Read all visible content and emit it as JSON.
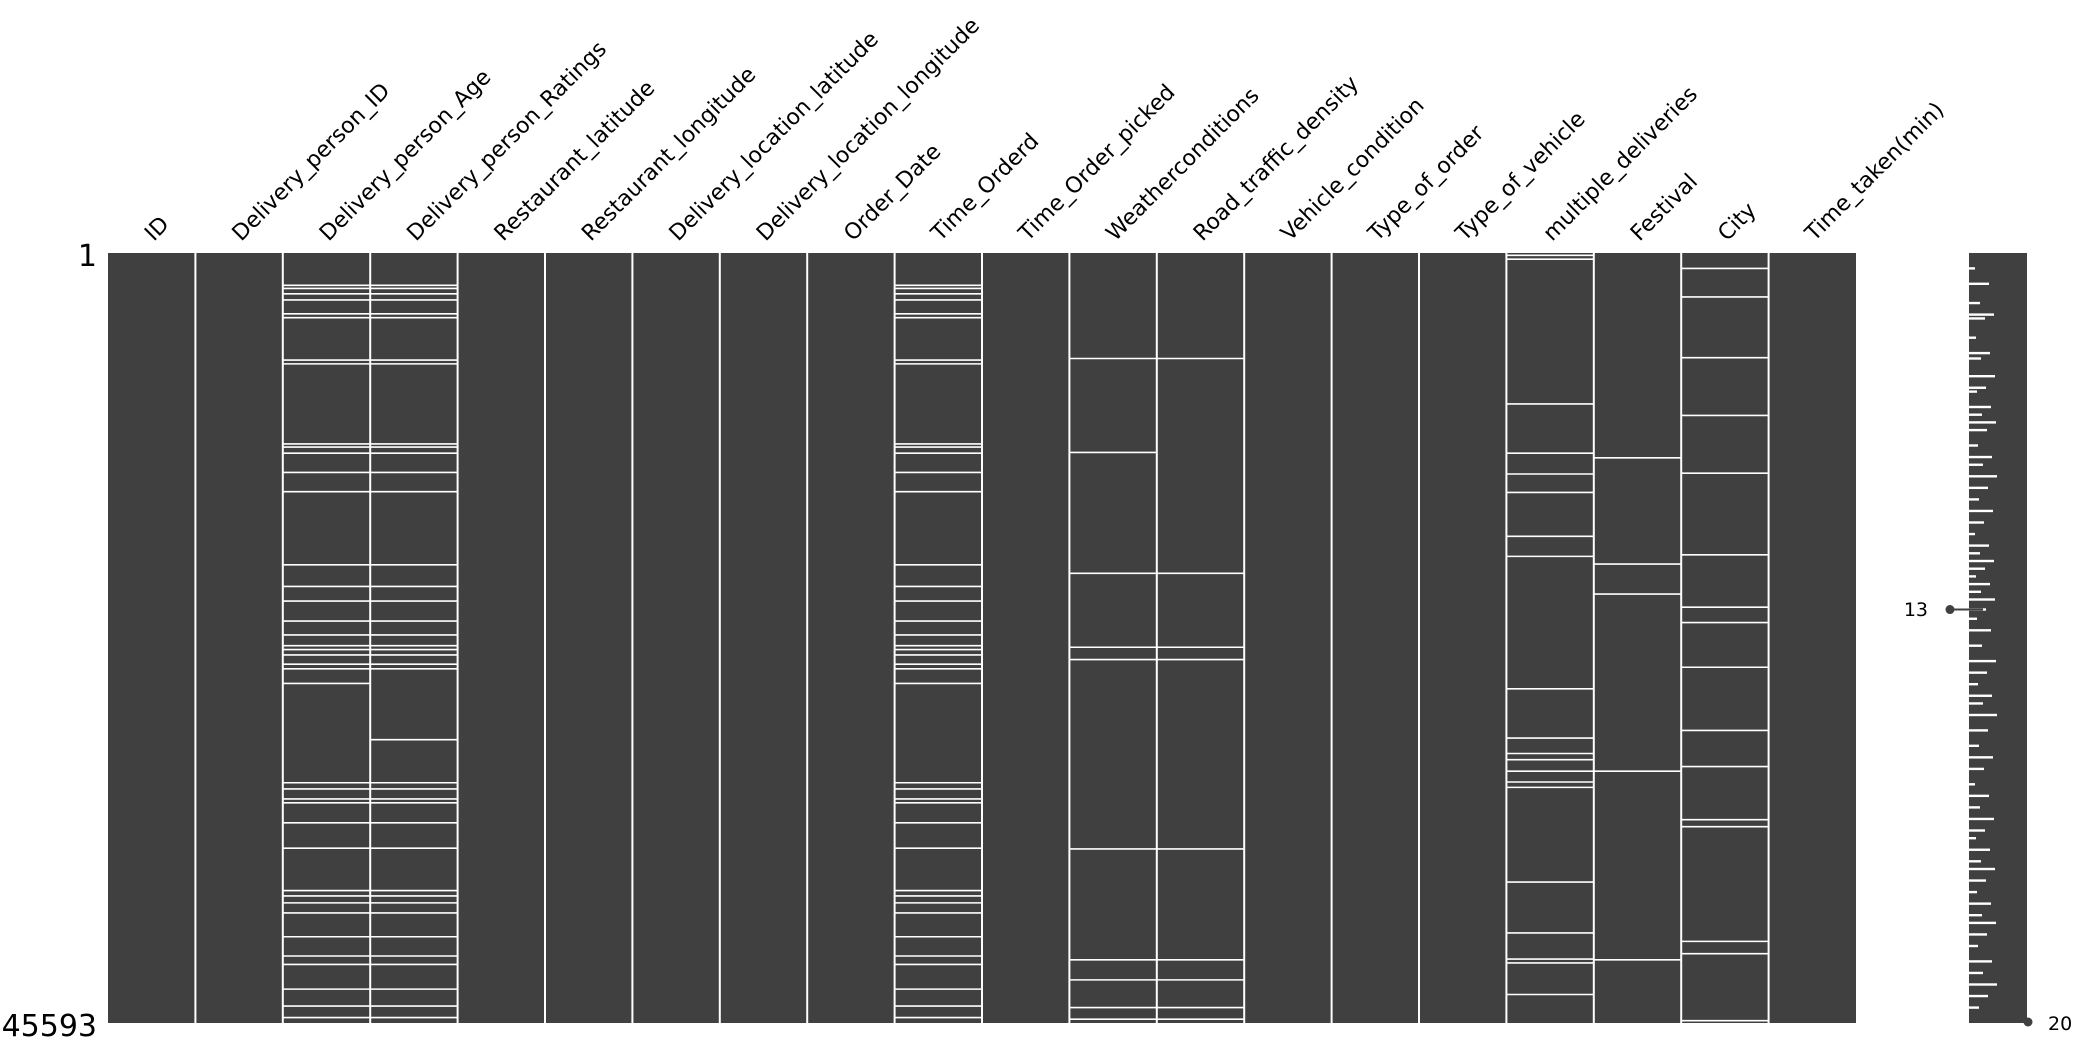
{
  "chart_data": {
    "type": "missingness_matrix",
    "total_rows": 45593,
    "row_label_top": "1",
    "row_label_bottom": "45593",
    "columns": [
      {
        "name": "ID",
        "missing_at": []
      },
      {
        "name": "Delivery_person_ID",
        "missing_at": []
      },
      {
        "name": "Delivery_person_Age",
        "missing_at": [
          0.042,
          0.046,
          0.053,
          0.061,
          0.079,
          0.084,
          0.139,
          0.144,
          0.248,
          0.252,
          0.26,
          0.285,
          0.31,
          0.405,
          0.433,
          0.452,
          0.478,
          0.496,
          0.51,
          0.515,
          0.522,
          0.534,
          0.54,
          0.559,
          0.688,
          0.696,
          0.709,
          0.714,
          0.74,
          0.773,
          0.828,
          0.835,
          0.844,
          0.857,
          0.888,
          0.913,
          0.924,
          0.956,
          0.978,
          0.993
        ]
      },
      {
        "name": "Delivery_person_Ratings",
        "missing_at": [
          0.042,
          0.046,
          0.053,
          0.061,
          0.079,
          0.084,
          0.139,
          0.144,
          0.248,
          0.252,
          0.26,
          0.285,
          0.31,
          0.405,
          0.433,
          0.452,
          0.478,
          0.496,
          0.51,
          0.515,
          0.522,
          0.534,
          0.54,
          0.632,
          0.688,
          0.696,
          0.709,
          0.714,
          0.74,
          0.773,
          0.828,
          0.835,
          0.844,
          0.857,
          0.888,
          0.913,
          0.924,
          0.956,
          0.978,
          0.993
        ]
      },
      {
        "name": "Restaurant_latitude",
        "missing_at": []
      },
      {
        "name": "Restaurant_longitude",
        "missing_at": []
      },
      {
        "name": "Delivery_location_latitude",
        "missing_at": []
      },
      {
        "name": "Delivery_location_longitude",
        "missing_at": []
      },
      {
        "name": "Order_Date",
        "missing_at": []
      },
      {
        "name": "Time_Orderd",
        "missing_at": [
          0.042,
          0.046,
          0.053,
          0.061,
          0.079,
          0.084,
          0.139,
          0.144,
          0.248,
          0.252,
          0.26,
          0.285,
          0.31,
          0.405,
          0.433,
          0.452,
          0.478,
          0.496,
          0.51,
          0.515,
          0.522,
          0.534,
          0.54,
          0.559,
          0.688,
          0.696,
          0.709,
          0.714,
          0.74,
          0.773,
          0.828,
          0.835,
          0.844,
          0.857,
          0.888,
          0.913,
          0.924,
          0.956,
          0.978,
          0.993
        ]
      },
      {
        "name": "Time_Order_picked",
        "missing_at": []
      },
      {
        "name": "Weatherconditions",
        "missing_at": [
          0.137,
          0.259,
          0.416,
          0.512,
          0.528,
          0.774,
          0.918,
          0.944,
          0.98,
          0.995
        ]
      },
      {
        "name": "Road_traffic_density",
        "missing_at": [
          0.137,
          0.416,
          0.512,
          0.528,
          0.774,
          0.918,
          0.944,
          0.98,
          0.995
        ]
      },
      {
        "name": "Vehicle_condition",
        "missing_at": []
      },
      {
        "name": "Type_of_order",
        "missing_at": []
      },
      {
        "name": "Type_of_vehicle",
        "missing_at": []
      },
      {
        "name": "multiple_deliveries",
        "missing_at": [
          0.003,
          0.008,
          0.196,
          0.26,
          0.287,
          0.311,
          0.368,
          0.394,
          0.566,
          0.63,
          0.65,
          0.658,
          0.673,
          0.687,
          0.694,
          0.817,
          0.883,
          0.917,
          0.922,
          0.963
        ]
      },
      {
        "name": "Festival",
        "missing_at": [
          0.266,
          0.404,
          0.443,
          0.673,
          0.918
        ]
      },
      {
        "name": "City",
        "missing_at": [
          0.02,
          0.057,
          0.136,
          0.211,
          0.286,
          0.392,
          0.46,
          0.48,
          0.538,
          0.62,
          0.667,
          0.736,
          0.745,
          0.894,
          0.91,
          0.997
        ]
      },
      {
        "name": "Time_taken(min)",
        "missing_at": []
      }
    ],
    "sparkline": {
      "min_label": "13",
      "max_label": "20",
      "min_row_fraction": 0.463,
      "max_row_fraction": 1.0,
      "dips": [
        0.02,
        0.04,
        0.065,
        0.08,
        0.085,
        0.11,
        0.13,
        0.137,
        0.16,
        0.175,
        0.18,
        0.2,
        0.21,
        0.22,
        0.23,
        0.25,
        0.265,
        0.275,
        0.29,
        0.305,
        0.32,
        0.335,
        0.35,
        0.365,
        0.38,
        0.39,
        0.4,
        0.41,
        0.42,
        0.43,
        0.44,
        0.45,
        0.463,
        0.475,
        0.49,
        0.51,
        0.53,
        0.545,
        0.56,
        0.575,
        0.585,
        0.6,
        0.62,
        0.64,
        0.655,
        0.67,
        0.69,
        0.705,
        0.72,
        0.735,
        0.75,
        0.76,
        0.775,
        0.79,
        0.8,
        0.815,
        0.83,
        0.845,
        0.86,
        0.87,
        0.885,
        0.9,
        0.92,
        0.935,
        0.95,
        0.965,
        0.98
      ]
    },
    "colors": {
      "present": "#404040",
      "missing": "#ffffff",
      "text": "#000000"
    }
  }
}
